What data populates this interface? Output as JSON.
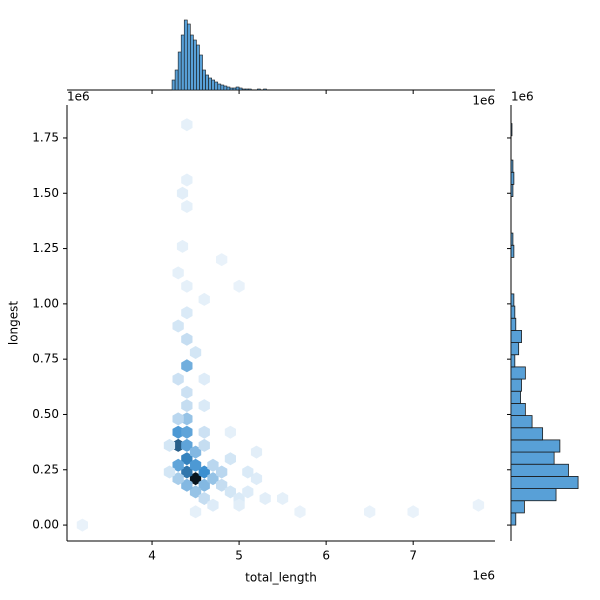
{
  "chart_data": {
    "type": "hexbin-joint",
    "x_label": "total_length",
    "y_label": "longest",
    "x_offset_text": "1e6",
    "y_offset_text": "1e6",
    "top_offset_text": "1e6",
    "right_offset_text": "1e6",
    "xlim": [
      3.023,
      7.94
    ],
    "ylim": [
      -0.072,
      1.899
    ],
    "xticks": [
      4,
      5,
      6,
      7
    ],
    "yticks": [
      {
        "value": 0,
        "label": "0.00"
      },
      0.25,
      {
        "value": 0.5,
        "label": "0.50"
      },
      0.75,
      {
        "value": 1,
        "label": "1.00"
      },
      1.25,
      {
        "value": 1.5,
        "label": "1.50"
      },
      1.75
    ],
    "color": "#3b8fd0",
    "hexes": {
      "x": [
        4.5,
        4.4,
        4.6,
        4.4,
        4.3,
        4.5,
        4.3,
        4.4,
        4.3,
        4.4,
        4.5,
        4.6,
        4.5,
        4.7,
        4.7,
        4.8,
        4.4,
        4.3,
        4.4,
        4.3,
        4.4,
        4.4,
        4.4,
        4.3,
        4.4,
        4.3,
        4.4,
        4.5,
        4.6,
        4.6,
        4.8,
        4.9,
        5.0,
        5.1,
        5.2,
        5.3,
        5.5,
        5.2,
        4.9,
        5.0,
        4.6,
        4.7,
        4.5,
        5.7,
        6.5,
        7.0,
        7.75,
        3.2,
        4.35,
        4.4,
        4.4,
        4.35,
        4.3,
        4.4,
        4.6,
        4.4,
        4.8,
        5.0,
        4.9,
        5.1,
        4.6,
        4.6,
        4.2,
        4.2
      ],
      "y": [
        0.21,
        0.24,
        0.24,
        0.3,
        0.27,
        0.27,
        0.36,
        0.36,
        0.42,
        0.42,
        0.33,
        0.18,
        0.15,
        0.21,
        0.27,
        0.24,
        0.18,
        0.21,
        0.48,
        0.48,
        0.54,
        0.6,
        0.72,
        0.66,
        0.84,
        0.9,
        0.96,
        0.78,
        0.42,
        0.36,
        0.18,
        0.15,
        0.12,
        0.15,
        0.21,
        0.12,
        0.12,
        0.33,
        0.42,
        0.09,
        0.12,
        0.09,
        0.06,
        0.06,
        0.06,
        0.06,
        0.09,
        0.0,
        1.5,
        1.56,
        1.44,
        1.26,
        1.14,
        1.08,
        1.02,
        1.81,
        1.2,
        1.08,
        0.3,
        0.24,
        0.54,
        0.66,
        0.36,
        0.24
      ],
      "counts": [
        100,
        60,
        50,
        55,
        40,
        45,
        70,
        40,
        45,
        40,
        30,
        30,
        25,
        25,
        15,
        15,
        30,
        20,
        25,
        15,
        12,
        10,
        35,
        10,
        12,
        8,
        6,
        8,
        10,
        12,
        12,
        8,
        6,
        5,
        5,
        4,
        3,
        4,
        3,
        4,
        12,
        5,
        3,
        2,
        2,
        2,
        2,
        2,
        4,
        3,
        3,
        3,
        3,
        3,
        3,
        3,
        2,
        2,
        8,
        6,
        6,
        5,
        8,
        8
      ]
    },
    "top_hist": {
      "bins": [
        4.23,
        4.265,
        4.3,
        4.335,
        4.37,
        4.405,
        4.44,
        4.475,
        4.51,
        4.545,
        4.58,
        4.615,
        4.65,
        4.685,
        4.72,
        4.755,
        4.79,
        4.825,
        4.86,
        4.895,
        4.93,
        4.965,
        5.0,
        5.035,
        5.07,
        5.105,
        5.14,
        5.175,
        5.21,
        5.245,
        5.28,
        5.315
      ],
      "counts": [
        10,
        20,
        38,
        55,
        70,
        66,
        55,
        50,
        45,
        35,
        20,
        15,
        12,
        10,
        8,
        6,
        5,
        4,
        3,
        2,
        2,
        3,
        2,
        1,
        1,
        1,
        0,
        0,
        1,
        0,
        1
      ],
      "count_lim": [
        0,
        72
      ]
    },
    "right_hist": {
      "bins": [
        0,
        0.055,
        0.11,
        0.165,
        0.22,
        0.275,
        0.33,
        0.385,
        0.44,
        0.495,
        0.55,
        0.605,
        0.66,
        0.715,
        0.77,
        0.825,
        0.88,
        0.935,
        0.99,
        1.045,
        1.1,
        1.155,
        1.21,
        1.265,
        1.32,
        1.375,
        1.43,
        1.485,
        1.54,
        1.595,
        1.65,
        1.705,
        1.76,
        1.815
      ],
      "counts": [
        5,
        14,
        47,
        70,
        60,
        45,
        51,
        33,
        22,
        15,
        10,
        11,
        15,
        4,
        8,
        11,
        5,
        4,
        3,
        0,
        0,
        0,
        3,
        2,
        0,
        0,
        0,
        2,
        3,
        2,
        0,
        0,
        1
      ],
      "count_lim": [
        0,
        72
      ]
    }
  }
}
